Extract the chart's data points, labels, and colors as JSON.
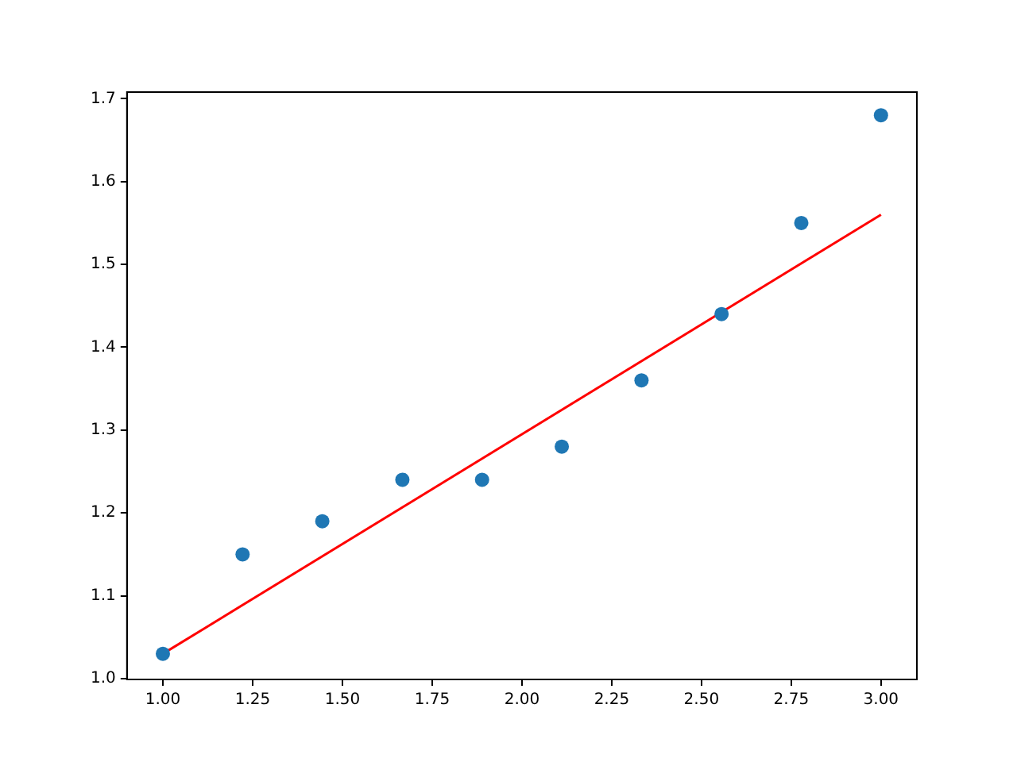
{
  "chart_data": {
    "type": "scatter",
    "xlim": [
      0.9,
      3.1
    ],
    "ylim": [
      0.999,
      1.708
    ],
    "xticks": [
      {
        "value": 1,
        "label": "1.00"
      },
      {
        "value": 1.25,
        "label": "1.25"
      },
      {
        "value": 1.5,
        "label": "1.50"
      },
      {
        "value": 1.75,
        "label": "1.75"
      },
      {
        "value": 2,
        "label": "2.00"
      },
      {
        "value": 2.25,
        "label": "2.25"
      },
      {
        "value": 2.5,
        "label": "2.50"
      },
      {
        "value": 2.75,
        "label": "2.75"
      },
      {
        "value": 3,
        "label": "3.00"
      }
    ],
    "yticks": [
      {
        "value": 1,
        "label": "1.0"
      },
      {
        "value": 1.1,
        "label": "1.1"
      },
      {
        "value": 1.2,
        "label": "1.2"
      },
      {
        "value": 1.3,
        "label": "1.3"
      },
      {
        "value": 1.4,
        "label": "1.4"
      },
      {
        "value": 1.5,
        "label": "1.5"
      },
      {
        "value": 1.6,
        "label": "1.6"
      },
      {
        "value": 1.7,
        "label": "1.7"
      }
    ],
    "grid": false,
    "legend": false,
    "series": [
      {
        "marker": "circle",
        "color": "#1f77b4",
        "x": [
          1,
          1.222,
          1.444,
          1.667,
          1.889,
          2.111,
          2.333,
          2.556,
          2.778,
          3
        ],
        "values": [
          1.03,
          1.15,
          1.19,
          1.24,
          1.24,
          1.28,
          1.36,
          1.44,
          1.55,
          1.68
        ]
      },
      {
        "type": "line",
        "marker": "none",
        "color": "#ff0000",
        "x": [
          1,
          3
        ],
        "values": [
          1.03,
          1.56
        ]
      }
    ]
  }
}
